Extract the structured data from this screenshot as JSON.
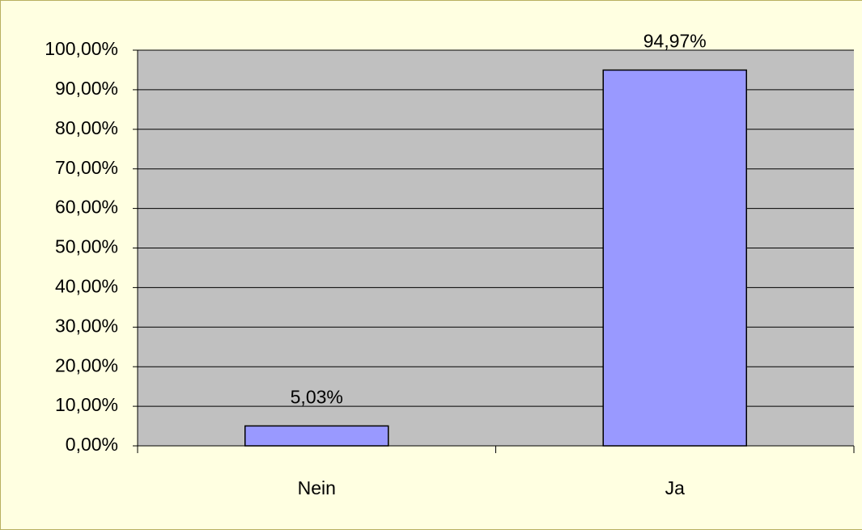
{
  "chart_data": {
    "type": "bar",
    "categories": [
      "Nein",
      "Ja"
    ],
    "values": [
      5.03,
      94.97
    ],
    "value_labels": [
      "5,03%",
      "94,97%"
    ],
    "color": "#9999ff",
    "ylim": [
      0,
      100
    ],
    "yticks": [
      {
        "value": 0,
        "label": "0,00%"
      },
      {
        "value": 10,
        "label": "10,00%"
      },
      {
        "value": 20,
        "label": "20,00%"
      },
      {
        "value": 30,
        "label": "30,00%"
      },
      {
        "value": 40,
        "label": "40,00%"
      },
      {
        "value": 50,
        "label": "50,00%"
      },
      {
        "value": 60,
        "label": "60,00%"
      },
      {
        "value": 70,
        "label": "70,00%"
      },
      {
        "value": 80,
        "label": "80,00%"
      },
      {
        "value": 90,
        "label": "90,00%"
      },
      {
        "value": 100,
        "label": "100,00%"
      }
    ],
    "grid": true
  }
}
